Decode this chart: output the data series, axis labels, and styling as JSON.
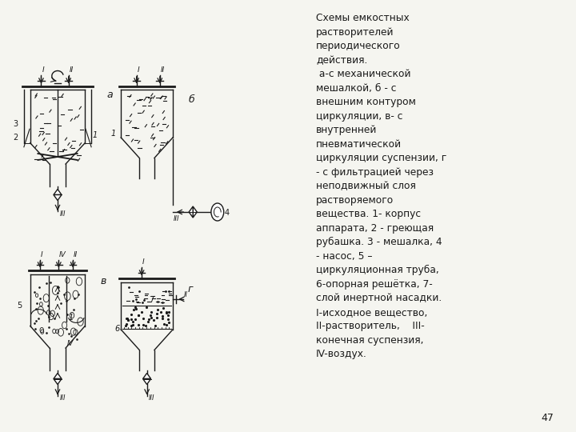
{
  "title_text": "Схемы емкостных\nрастворителей\nпериодического\nдействия.\n а-с механической\nмешалкой, б - с\nвнешним контуром\nциркуляции, в- с\nвнутренней\nпневматической\nциркуляции суспензии, г\n- с фильтрацией через\nнеподвижный слоя\nрастворяемого\nвещества. 1- корпус\nаппарата, 2 - греющая\nрубашка. 3 - мешалка, 4\n- насос, 5 –\nциркуляционная труба,\n6-опорная решётка, 7-\nслой инертной насадки.\nI-исходное вещество,\nII-растворитель,    III-\nконечная суспензия,\nIV-воздух.",
  "page_number": "47",
  "bg_color": "#f5f5f0",
  "line_color": "#1a1a1a",
  "text_color": "#1a1a1a"
}
